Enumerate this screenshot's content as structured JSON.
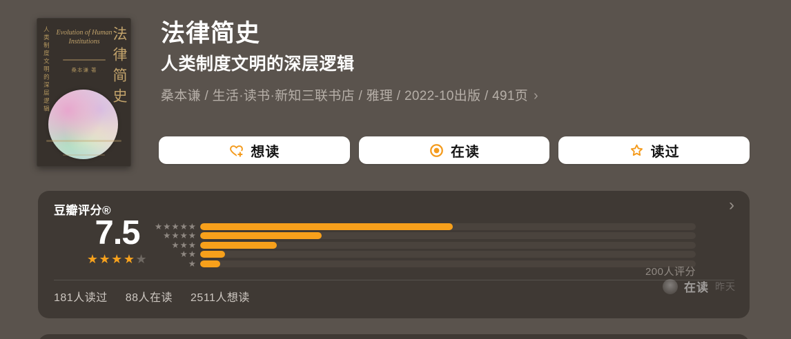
{
  "book": {
    "title": "法律简史",
    "subtitle": "人类制度文明的深层逻辑",
    "meta": "桑本谦 / 生活·读书·新知三联书店 / 雅理 / 2022-10出版 / 491页",
    "meta_chevron": "›",
    "cover": {
      "vertical_title": "法律简史",
      "left_vertical_text": "人类制度文明的深层逻辑",
      "english_title": "Evolution of Human Institutions",
      "author_line": "桑本谦 著"
    }
  },
  "actions": [
    {
      "label": "想读",
      "icon": "heart-plus-icon"
    },
    {
      "label": "在读",
      "icon": "target-icon"
    },
    {
      "label": "读过",
      "icon": "star-outline-icon"
    }
  ],
  "rating": {
    "card_title": "豆瓣评分®",
    "chevron": "›",
    "score": "7.5",
    "score_stars_on": "★★★★",
    "score_stars_off": "★",
    "histogram": [
      {
        "stars": "★★★★★",
        "percent": 51
      },
      {
        "stars": "★★★★",
        "percent": 24.5
      },
      {
        "stars": "★★★",
        "percent": 15.5
      },
      {
        "stars": "★★",
        "percent": 5
      },
      {
        "stars": "★",
        "percent": 4
      }
    ],
    "ratings_count": "200人评分",
    "stats": [
      "181人读过",
      "88人在读",
      "2511人想读"
    ],
    "ghost_activity": {
      "status": "在读",
      "time": "昨天"
    }
  },
  "colors": {
    "accent_orange": "#f7a01b",
    "page_background": "#5a534d",
    "card_background": "#3f3934",
    "cover_gold": "#c2a36b"
  }
}
